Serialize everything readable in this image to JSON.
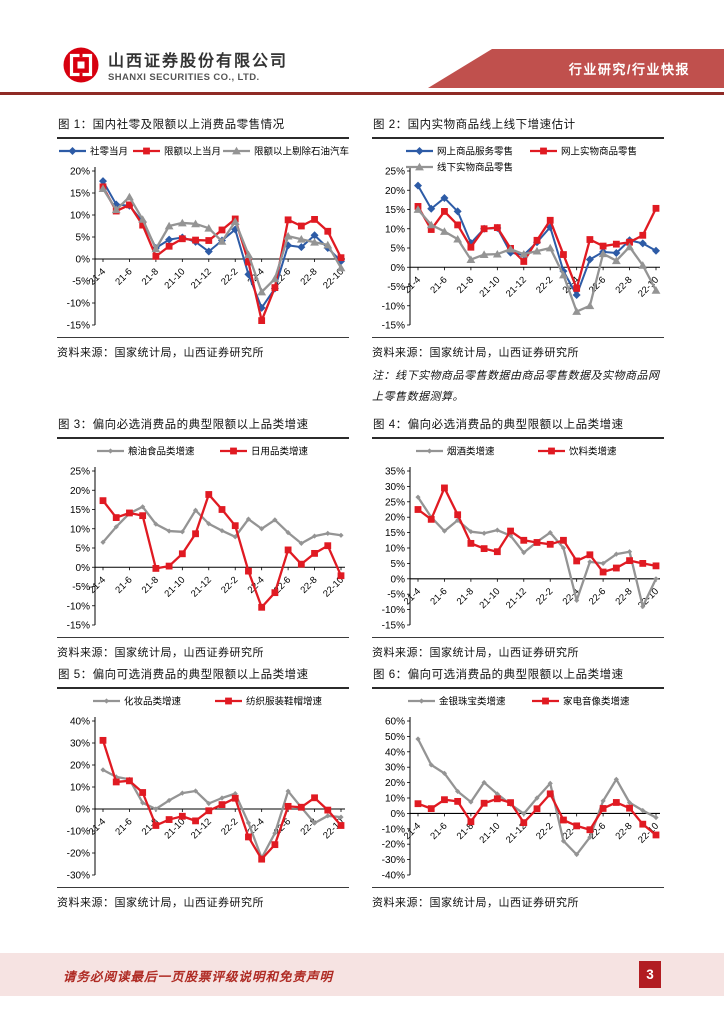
{
  "header": {
    "company_cn": "山西证券股份有限公司",
    "company_en": "SHANXI SECURITIES CO., LTD.",
    "report_type": "行业研究/行业快报",
    "logo_red": "#D7000F",
    "banner_red": "#C0504D",
    "rule_red": "#8F2A25"
  },
  "footer": {
    "disclaimer": "请务必阅读最后一页股票评级说明和免责声明",
    "page": "3"
  },
  "chart_data": {
    "type": "line",
    "months": [
      "21-4",
      "21-5",
      "21-6",
      "21-7",
      "21-8",
      "21-9",
      "21-10",
      "21-11",
      "21-12",
      "22-1",
      "22-2",
      "22-3",
      "22-4",
      "22-5",
      "22-6",
      "22-7",
      "22-8",
      "22-9",
      "22-10"
    ],
    "x_tick_labels": [
      "21-4",
      "21-6",
      "21-8",
      "21-10",
      "21-12",
      "22-2",
      "22-4",
      "22-6",
      "22-8",
      "22-10"
    ],
    "colors": {
      "blue": "#2D5BA6",
      "red": "#E01A22",
      "gray": "#949494"
    },
    "charts": [
      {
        "title": "图 1：国内社零及限额以上消费品零售情况",
        "ylim": [
          -15,
          20
        ],
        "ystep": 5,
        "source": "资料来源：国家统计局，山西证券研究所",
        "note": "",
        "series": [
          {
            "name": "社零当月",
            "color": "#2D5BA6",
            "marker": "diamond",
            "values": [
              17.7,
              12.4,
              12.1,
              8.5,
              2.5,
              4.4,
              4.9,
              3.9,
              1.7,
              4.2,
              6.7,
              -3.5,
              -11.1,
              -6.7,
              3.1,
              2.7,
              5.4,
              2.5,
              -0.5
            ]
          },
          {
            "name": "限额以上当月",
            "color": "#E01A22",
            "marker": "square",
            "values": [
              16.4,
              10.9,
              12.3,
              7.7,
              0.6,
              2.9,
              4.6,
              4.3,
              4.2,
              6.6,
              9.1,
              -0.7,
              -14.0,
              -6.5,
              8.9,
              7.5,
              9.0,
              6.3,
              0.3
            ]
          },
          {
            "name": "限额以上剔除石油汽车",
            "color": "#949494",
            "marker": "triangle",
            "values": [
              16.0,
              11.2,
              14.1,
              9.0,
              2.3,
              7.5,
              8.2,
              8.0,
              7.0,
              4.0,
              8.5,
              1.0,
              -7.5,
              -4.5,
              5.2,
              4.5,
              3.8,
              3.2,
              -2.0
            ]
          }
        ]
      },
      {
        "title": "图 2：国内实物商品线上线下增速估计",
        "ylim": [
          -15,
          25
        ],
        "ystep": 5,
        "source": "资料来源：国家统计局，山西证券研究所",
        "note": "注：线下实物商品零售数据由商品零售数据及实物商品网上零售数据测算。",
        "series": [
          {
            "name": "网上商品服务零售",
            "color": "#2D5BA6",
            "marker": "diamond",
            "values": [
              21.2,
              15.2,
              18.0,
              14.5,
              6.3,
              10.0,
              10.2,
              3.8,
              3.2,
              6.5,
              10.4,
              -1.0,
              -7.2,
              2.0,
              4.0,
              3.7,
              7.0,
              6.2,
              4.3
            ]
          },
          {
            "name": "网上实物商品零售",
            "color": "#E01A22",
            "marker": "square",
            "values": [
              15.8,
              9.8,
              14.5,
              11.0,
              5.2,
              10.0,
              10.3,
              4.9,
              1.5,
              7.0,
              12.2,
              3.3,
              -5.5,
              7.2,
              5.5,
              6.0,
              6.5,
              8.3,
              15.3
            ]
          },
          {
            "name": "线下实物商品零售",
            "color": "#949494",
            "marker": "triangle",
            "values": [
              15.0,
              11.0,
              9.3,
              7.3,
              2.0,
              3.3,
              3.4,
              4.7,
              3.4,
              4.2,
              5.0,
              -2.0,
              -11.5,
              -10.0,
              3.5,
              1.7,
              5.3,
              0.5,
              -6.0
            ]
          }
        ]
      },
      {
        "title": "图 3：偏向必选消费品的典型限额以上品类增速",
        "ylim": [
          -15,
          25
        ],
        "ystep": 5,
        "source": "资料来源：国家统计局，山西证券研究所",
        "note": "",
        "series": [
          {
            "name": "粮油食品类增速",
            "color": "#949494",
            "marker": "dot",
            "values": [
              6.5,
              10.5,
              14.0,
              15.7,
              11.2,
              9.4,
              9.2,
              14.8,
              11.3,
              9.5,
              7.9,
              12.5,
              10.0,
              12.3,
              9.0,
              6.2,
              8.1,
              8.8,
              8.3
            ]
          },
          {
            "name": "日用品类增速",
            "color": "#E01A22",
            "marker": "square",
            "values": [
              17.3,
              12.9,
              14.1,
              13.4,
              -0.3,
              0.3,
              3.5,
              8.7,
              18.9,
              15.0,
              10.8,
              -1.0,
              -10.4,
              -6.6,
              4.5,
              0.8,
              3.6,
              5.6,
              -2.2
            ]
          }
        ]
      },
      {
        "title": "图 4：偏向必选消费品的典型限额以上品类增速",
        "ylim": [
          -15,
          35
        ],
        "ystep": 5,
        "source": "资料来源：国家统计局，山西证券研究所",
        "note": "",
        "series": [
          {
            "name": "烟酒类增速",
            "color": "#949494",
            "marker": "dot",
            "values": [
              26.5,
              20.0,
              15.5,
              19.0,
              15.3,
              14.8,
              15.8,
              14.0,
              8.5,
              12.0,
              15.0,
              10.0,
              -7.0,
              5.5,
              5.0,
              8.0,
              8.8,
              -9.0,
              0.0
            ]
          },
          {
            "name": "饮料类增速",
            "color": "#E01A22",
            "marker": "square",
            "values": [
              22.5,
              19.3,
              29.5,
              20.8,
              11.5,
              9.8,
              8.8,
              15.5,
              12.5,
              11.8,
              11.2,
              12.5,
              5.8,
              7.8,
              2.2,
              3.5,
              5.9,
              5.0,
              4.2
            ]
          }
        ]
      },
      {
        "title": "图 5：偏向可选消费品的典型限额以上品类增速",
        "ylim": [
          -30,
          40
        ],
        "ystep": 10,
        "source": "资料来源：国家统计局，山西证券研究所",
        "note": "",
        "series": [
          {
            "name": "化妆品类增速",
            "color": "#949494",
            "marker": "dot",
            "values": [
              17.8,
              14.6,
              13.5,
              2.8,
              0.0,
              3.9,
              7.2,
              8.2,
              2.5,
              5.0,
              7.0,
              -6.3,
              -22.3,
              -11.0,
              8.1,
              0.7,
              -6.4,
              -3.1,
              -3.7
            ]
          },
          {
            "name": "纺织服装鞋帽增速",
            "color": "#E01A22",
            "marker": "square",
            "values": [
              31.2,
              12.3,
              12.8,
              7.5,
              -7.5,
              -4.8,
              -3.3,
              -5.4,
              -0.8,
              2.0,
              4.9,
              -12.7,
              -22.8,
              -16.2,
              1.2,
              0.8,
              5.1,
              -0.5,
              -7.5
            ]
          }
        ]
      },
      {
        "title": "图 6：偏向可选消费品的典型限额以上品类增速",
        "ylim": [
          -40,
          60
        ],
        "ystep": 10,
        "source": "资料来源：国家统计局，山西证券研究所",
        "note": "",
        "series": [
          {
            "name": "金银珠宝类增速",
            "color": "#949494",
            "marker": "dot",
            "values": [
              48.3,
              31.5,
              26.0,
              14.3,
              7.4,
              20.1,
              12.6,
              5.9,
              -0.2,
              10.0,
              19.5,
              -17.9,
              -26.7,
              -15.5,
              8.1,
              22.1,
              7.0,
              1.9,
              -2.7
            ]
          },
          {
            "name": "家电音像类增速",
            "color": "#E01A22",
            "marker": "square",
            "values": [
              6.3,
              3.1,
              8.9,
              7.8,
              -5.4,
              6.6,
              9.5,
              7.0,
              -6.0,
              3.0,
              12.7,
              -4.3,
              -8.1,
              -10.6,
              3.2,
              7.1,
              3.4,
              -7.0,
              -14.0
            ]
          }
        ]
      }
    ]
  }
}
